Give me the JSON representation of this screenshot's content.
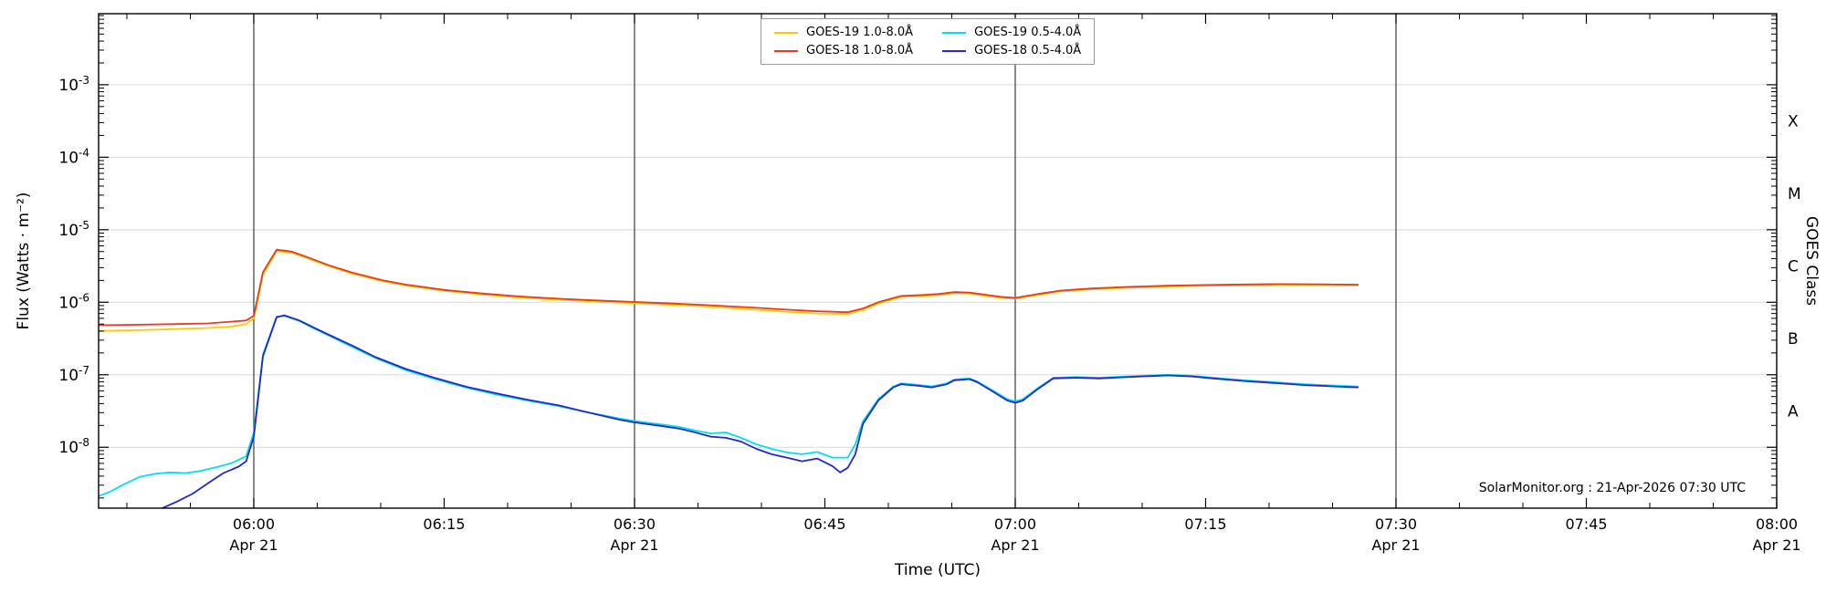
{
  "chart_data": {
    "type": "line",
    "title": "",
    "xlabel": "Time (UTC)",
    "ylabel": "Flux (Watts · m⁻²)",
    "ylabel_right": "GOES Class",
    "annotation": "SolarMonitor.org : 21-Apr-2026 07:30 UTC",
    "grid": true,
    "legend_position": "top-center",
    "x_range": [
      5.7962,
      8.0
    ],
    "y_log_range": [
      -8.84,
      -2.02
    ],
    "y_ticks_exp": [
      -3,
      -4,
      -5,
      -6,
      -7,
      -8
    ],
    "v_gridlines": [
      6.0,
      6.5,
      7.0,
      7.5
    ],
    "x_ticks": [
      {
        "t": 6.0,
        "label": "06:00",
        "sub": "Apr 21"
      },
      {
        "t": 6.25,
        "label": "06:15",
        "sub": ""
      },
      {
        "t": 6.5,
        "label": "06:30",
        "sub": "Apr 21"
      },
      {
        "t": 6.75,
        "label": "06:45",
        "sub": ""
      },
      {
        "t": 7.0,
        "label": "07:00",
        "sub": "Apr 21"
      },
      {
        "t": 7.25,
        "label": "07:15",
        "sub": ""
      },
      {
        "t": 7.5,
        "label": "07:30",
        "sub": "Apr 21"
      },
      {
        "t": 7.75,
        "label": "07:45",
        "sub": ""
      },
      {
        "t": 8.0,
        "label": "08:00",
        "sub": "Apr 21"
      }
    ],
    "goes_classes": [
      {
        "label": "X",
        "exp": -3.5
      },
      {
        "label": "M",
        "exp": -4.5
      },
      {
        "label": "C",
        "exp": -5.5
      },
      {
        "label": "B",
        "exp": -6.5
      },
      {
        "label": "A",
        "exp": -7.5
      }
    ],
    "series": [
      {
        "key": "goes19-long",
        "name": "GOES-19 1.0-8.0Å",
        "color": "#ffc800",
        "points": [
          [
            5.79,
            4e-07
          ],
          [
            5.85,
            4.12e-07
          ],
          [
            5.9,
            4.28e-07
          ],
          [
            5.94,
            4.42e-07
          ],
          [
            5.97,
            4.6e-07
          ],
          [
            5.99,
            5e-07
          ],
          [
            6.0,
            6e-07
          ],
          [
            6.012,
            2.4e-06
          ],
          [
            6.03,
            5.1e-06
          ],
          [
            6.05,
            4.8e-06
          ],
          [
            6.07,
            4.05e-06
          ],
          [
            6.1,
            3.1e-06
          ],
          [
            6.13,
            2.47e-06
          ],
          [
            6.17,
            1.94e-06
          ],
          [
            6.2,
            1.7e-06
          ],
          [
            6.25,
            1.44e-06
          ],
          [
            6.3,
            1.28e-06
          ],
          [
            6.35,
            1.16e-06
          ],
          [
            6.4,
            1.08e-06
          ],
          [
            6.45,
            1.02e-06
          ],
          [
            6.5,
            9.7e-07
          ],
          [
            6.55,
            9.2e-07
          ],
          [
            6.6,
            8.7e-07
          ],
          [
            6.65,
            8e-07
          ],
          [
            6.7,
            7.4e-07
          ],
          [
            6.74,
            7e-07
          ],
          [
            6.78,
            6.9e-07
          ],
          [
            6.8,
            7.8e-07
          ],
          [
            6.82,
            9.6e-07
          ],
          [
            6.85,
            1.18e-06
          ],
          [
            6.88,
            1.22e-06
          ],
          [
            6.9,
            1.26e-06
          ],
          [
            6.92,
            1.34e-06
          ],
          [
            6.94,
            1.32e-06
          ],
          [
            6.96,
            1.23e-06
          ],
          [
            6.98,
            1.16e-06
          ],
          [
            7.0,
            1.12e-06
          ],
          [
            7.03,
            1.26e-06
          ],
          [
            7.06,
            1.41e-06
          ],
          [
            7.1,
            1.51e-06
          ],
          [
            7.15,
            1.59e-06
          ],
          [
            7.2,
            1.65e-06
          ],
          [
            7.25,
            1.69e-06
          ],
          [
            7.3,
            1.72e-06
          ],
          [
            7.35,
            1.74e-06
          ],
          [
            7.4,
            1.73e-06
          ],
          [
            7.45,
            1.71e-06
          ]
        ]
      },
      {
        "key": "goes18-long",
        "name": "GOES-18 1.0-8.0Å",
        "color": "#e73c1e",
        "points": [
          [
            5.79,
            4.8e-07
          ],
          [
            5.85,
            4.9e-07
          ],
          [
            5.9,
            5e-07
          ],
          [
            5.94,
            5.1e-07
          ],
          [
            5.97,
            5.4e-07
          ],
          [
            5.99,
            5.6e-07
          ],
          [
            6.0,
            6.5e-07
          ],
          [
            6.012,
            2.6e-06
          ],
          [
            6.03,
            5.3e-06
          ],
          [
            6.05,
            5e-06
          ],
          [
            6.07,
            4.2e-06
          ],
          [
            6.1,
            3.2e-06
          ],
          [
            6.13,
            2.55e-06
          ],
          [
            6.17,
            2e-06
          ],
          [
            6.2,
            1.75e-06
          ],
          [
            6.25,
            1.48e-06
          ],
          [
            6.3,
            1.32e-06
          ],
          [
            6.35,
            1.2e-06
          ],
          [
            6.4,
            1.12e-06
          ],
          [
            6.45,
            1.06e-06
          ],
          [
            6.5,
            1.01e-06
          ],
          [
            6.55,
            9.6e-07
          ],
          [
            6.6,
            9.1e-07
          ],
          [
            6.65,
            8.5e-07
          ],
          [
            6.7,
            7.9e-07
          ],
          [
            6.74,
            7.5e-07
          ],
          [
            6.78,
            7.3e-07
          ],
          [
            6.8,
            8.2e-07
          ],
          [
            6.82,
            1e-06
          ],
          [
            6.85,
            1.22e-06
          ],
          [
            6.88,
            1.26e-06
          ],
          [
            6.9,
            1.3e-06
          ],
          [
            6.92,
            1.38e-06
          ],
          [
            6.94,
            1.36e-06
          ],
          [
            6.96,
            1.27e-06
          ],
          [
            6.98,
            1.19e-06
          ],
          [
            7.0,
            1.15e-06
          ],
          [
            7.03,
            1.3e-06
          ],
          [
            7.06,
            1.45e-06
          ],
          [
            7.1,
            1.55e-06
          ],
          [
            7.15,
            1.63e-06
          ],
          [
            7.2,
            1.69e-06
          ],
          [
            7.25,
            1.73e-06
          ],
          [
            7.3,
            1.76e-06
          ],
          [
            7.35,
            1.78e-06
          ],
          [
            7.4,
            1.77e-06
          ],
          [
            7.45,
            1.75e-06
          ]
        ]
      },
      {
        "key": "goes19-short",
        "name": "GOES-19 0.5-4.0Å",
        "color": "#00dff0",
        "points": [
          [
            5.79,
            2e-09
          ],
          [
            5.81,
            2.4e-09
          ],
          [
            5.83,
            3.1e-09
          ],
          [
            5.85,
            3.9e-09
          ],
          [
            5.87,
            4.3e-09
          ],
          [
            5.89,
            4.5e-09
          ],
          [
            5.91,
            4.4e-09
          ],
          [
            5.93,
            4.7e-09
          ],
          [
            5.95,
            5.3e-09
          ],
          [
            5.97,
            6e-09
          ],
          [
            5.99,
            7.5e-09
          ],
          [
            6.0,
            1.6e-08
          ],
          [
            6.012,
            1.9e-07
          ],
          [
            6.03,
            6.3e-07
          ],
          [
            6.04,
            6.5e-07
          ],
          [
            6.06,
            5.5e-07
          ],
          [
            6.08,
            4.3e-07
          ],
          [
            6.1,
            3.4e-07
          ],
          [
            6.13,
            2.4e-07
          ],
          [
            6.16,
            1.7e-07
          ],
          [
            6.2,
            1.15e-07
          ],
          [
            6.24,
            8.6e-08
          ],
          [
            6.28,
            6.6e-08
          ],
          [
            6.32,
            5.3e-08
          ],
          [
            6.36,
            4.4e-08
          ],
          [
            6.4,
            3.7e-08
          ],
          [
            6.44,
            3e-08
          ],
          [
            6.48,
            2.5e-08
          ],
          [
            6.5,
            2.3e-08
          ],
          [
            6.53,
            2.1e-08
          ],
          [
            6.56,
            1.9e-08
          ],
          [
            6.58,
            1.7e-08
          ],
          [
            6.6,
            1.55e-08
          ],
          [
            6.62,
            1.6e-08
          ],
          [
            6.64,
            1.35e-08
          ],
          [
            6.66,
            1.1e-08
          ],
          [
            6.68,
            9.5e-09
          ],
          [
            6.7,
            8.5e-09
          ],
          [
            6.72,
            8e-09
          ],
          [
            6.74,
            8.6e-09
          ],
          [
            6.76,
            7.2e-09
          ],
          [
            6.78,
            7.2e-09
          ],
          [
            6.79,
            1.1e-08
          ],
          [
            6.8,
            2.3e-08
          ],
          [
            6.82,
            4.6e-08
          ],
          [
            6.84,
            6.9e-08
          ],
          [
            6.85,
            7.6e-08
          ],
          [
            6.87,
            7.3e-08
          ],
          [
            6.89,
            6.9e-08
          ],
          [
            6.91,
            7.6e-08
          ],
          [
            6.92,
            8.6e-08
          ],
          [
            6.94,
            8.9e-08
          ],
          [
            6.95,
            8.1e-08
          ],
          [
            6.97,
            6.1e-08
          ],
          [
            6.99,
            4.6e-08
          ],
          [
            7.0,
            4.3e-08
          ],
          [
            7.01,
            4.6e-08
          ],
          [
            7.03,
            6.6e-08
          ],
          [
            7.05,
            9.1e-08
          ],
          [
            7.08,
            9.3e-08
          ],
          [
            7.11,
            9.1e-08
          ],
          [
            7.14,
            9.4e-08
          ],
          [
            7.17,
            9.7e-08
          ],
          [
            7.2,
            1e-07
          ],
          [
            7.23,
            9.7e-08
          ],
          [
            7.26,
            9.1e-08
          ],
          [
            7.3,
            8.4e-08
          ],
          [
            7.34,
            7.9e-08
          ],
          [
            7.38,
            7.4e-08
          ],
          [
            7.42,
            7.1e-08
          ],
          [
            7.45,
            6.9e-08
          ]
        ]
      },
      {
        "key": "goes18-short",
        "name": "GOES-18 0.5-4.0Å",
        "color": "#2328c8",
        "points": [
          [
            5.79,
            1e-09
          ],
          [
            5.84,
            1.1e-09
          ],
          [
            5.87,
            1.3e-09
          ],
          [
            5.9,
            1.8e-09
          ],
          [
            5.92,
            2.3e-09
          ],
          [
            5.94,
            3.2e-09
          ],
          [
            5.96,
            4.4e-09
          ],
          [
            5.98,
            5.4e-09
          ],
          [
            5.99,
            6.4e-09
          ],
          [
            6.0,
            1.4e-08
          ],
          [
            6.012,
            1.8e-07
          ],
          [
            6.03,
            6.2e-07
          ],
          [
            6.04,
            6.6e-07
          ],
          [
            6.06,
            5.6e-07
          ],
          [
            6.08,
            4.4e-07
          ],
          [
            6.1,
            3.5e-07
          ],
          [
            6.13,
            2.5e-07
          ],
          [
            6.16,
            1.75e-07
          ],
          [
            6.2,
            1.2e-07
          ],
          [
            6.24,
            8.9e-08
          ],
          [
            6.28,
            6.8e-08
          ],
          [
            6.32,
            5.5e-08
          ],
          [
            6.36,
            4.5e-08
          ],
          [
            6.4,
            3.8e-08
          ],
          [
            6.44,
            3e-08
          ],
          [
            6.48,
            2.4e-08
          ],
          [
            6.5,
            2.2e-08
          ],
          [
            6.53,
            2e-08
          ],
          [
            6.56,
            1.8e-08
          ],
          [
            6.58,
            1.6e-08
          ],
          [
            6.6,
            1.4e-08
          ],
          [
            6.62,
            1.35e-08
          ],
          [
            6.64,
            1.2e-08
          ],
          [
            6.66,
            9.5e-09
          ],
          [
            6.68,
            8e-09
          ],
          [
            6.7,
            7.2e-09
          ],
          [
            6.72,
            6.4e-09
          ],
          [
            6.74,
            7e-09
          ],
          [
            6.76,
            5.5e-09
          ],
          [
            6.77,
            4.5e-09
          ],
          [
            6.78,
            5.2e-09
          ],
          [
            6.79,
            8e-09
          ],
          [
            6.8,
            2.1e-08
          ],
          [
            6.82,
            4.4e-08
          ],
          [
            6.84,
            6.7e-08
          ],
          [
            6.85,
            7.4e-08
          ],
          [
            6.87,
            7.1e-08
          ],
          [
            6.89,
            6.7e-08
          ],
          [
            6.91,
            7.4e-08
          ],
          [
            6.92,
            8.4e-08
          ],
          [
            6.94,
            8.7e-08
          ],
          [
            6.95,
            7.9e-08
          ],
          [
            6.97,
            5.9e-08
          ],
          [
            6.99,
            4.4e-08
          ],
          [
            7.0,
            4.1e-08
          ],
          [
            7.01,
            4.4e-08
          ],
          [
            7.03,
            6.4e-08
          ],
          [
            7.05,
            8.9e-08
          ],
          [
            7.08,
            9.1e-08
          ],
          [
            7.11,
            8.9e-08
          ],
          [
            7.14,
            9.2e-08
          ],
          [
            7.17,
            9.5e-08
          ],
          [
            7.2,
            9.8e-08
          ],
          [
            7.23,
            9.5e-08
          ],
          [
            7.26,
            8.9e-08
          ],
          [
            7.3,
            8.2e-08
          ],
          [
            7.34,
            7.7e-08
          ],
          [
            7.38,
            7.2e-08
          ],
          [
            7.42,
            6.9e-08
          ],
          [
            7.45,
            6.7e-08
          ]
        ]
      }
    ]
  }
}
